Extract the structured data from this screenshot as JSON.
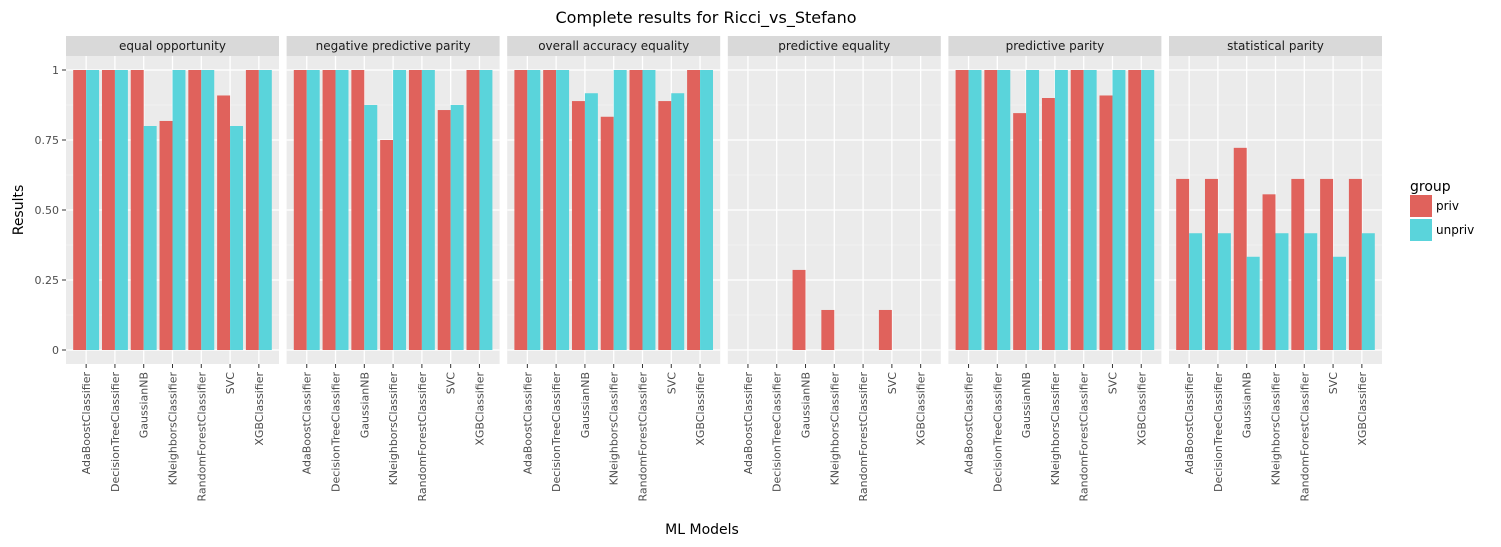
{
  "chart_data": {
    "type": "bar",
    "title": "Complete results for Ricci_vs_Stefano",
    "xlabel": "ML Models",
    "ylabel": "Results",
    "ylim": [
      -0.05,
      1.05
    ],
    "yticks": [
      0,
      0.25,
      0.5,
      0.75,
      1
    ],
    "ytick_labels": [
      "0",
      "0.25",
      "0.50",
      "0.75",
      "1"
    ],
    "grid": true,
    "legend": {
      "title": "group",
      "placement": "right",
      "entries": [
        {
          "name": "priv",
          "color": "#e0625c"
        },
        {
          "name": "unpriv",
          "color": "#5ad4db"
        }
      ]
    },
    "categories": [
      "AdaBoostClassifier",
      "DecisionTreeClassifier",
      "GaussianNB",
      "KNeighborsClassifier",
      "RandomForestClassifier",
      "SVC",
      "XGBClassifier"
    ],
    "panels": [
      {
        "name": "equal opportunity",
        "series": [
          {
            "name": "priv",
            "values": [
              1,
              1,
              1,
              0.818,
              1,
              0.909,
              1
            ]
          },
          {
            "name": "unpriv",
            "values": [
              1,
              1,
              0.8,
              1,
              1,
              0.8,
              1
            ]
          }
        ]
      },
      {
        "name": "negative predictive parity",
        "series": [
          {
            "name": "priv",
            "values": [
              1,
              1,
              1,
              0.75,
              1,
              0.857,
              1
            ]
          },
          {
            "name": "unpriv",
            "values": [
              1,
              1,
              0.875,
              1,
              1,
              0.875,
              1
            ]
          }
        ]
      },
      {
        "name": "overall accuracy equality",
        "series": [
          {
            "name": "priv",
            "values": [
              1,
              1,
              0.889,
              0.833,
              1,
              0.889,
              1
            ]
          },
          {
            "name": "unpriv",
            "values": [
              1,
              1,
              0.917,
              1,
              1,
              0.917,
              1
            ]
          }
        ]
      },
      {
        "name": "predictive equality",
        "series": [
          {
            "name": "priv",
            "values": [
              0,
              0,
              0.286,
              0.143,
              0,
              0.143,
              0
            ]
          },
          {
            "name": "unpriv",
            "values": [
              0,
              0,
              0,
              0,
              0,
              0,
              0
            ]
          }
        ]
      },
      {
        "name": "predictive parity",
        "series": [
          {
            "name": "priv",
            "values": [
              1,
              1,
              0.846,
              0.9,
              1,
              0.909,
              1
            ]
          },
          {
            "name": "unpriv",
            "values": [
              1,
              1,
              1,
              1,
              1,
              1,
              1
            ]
          }
        ]
      },
      {
        "name": "statistical parity",
        "series": [
          {
            "name": "priv",
            "values": [
              0.611,
              0.611,
              0.722,
              0.556,
              0.611,
              0.611,
              0.611
            ]
          },
          {
            "name": "unpriv",
            "values": [
              0.417,
              0.417,
              0.333,
              0.417,
              0.417,
              0.333,
              0.417
            ]
          }
        ]
      }
    ]
  }
}
